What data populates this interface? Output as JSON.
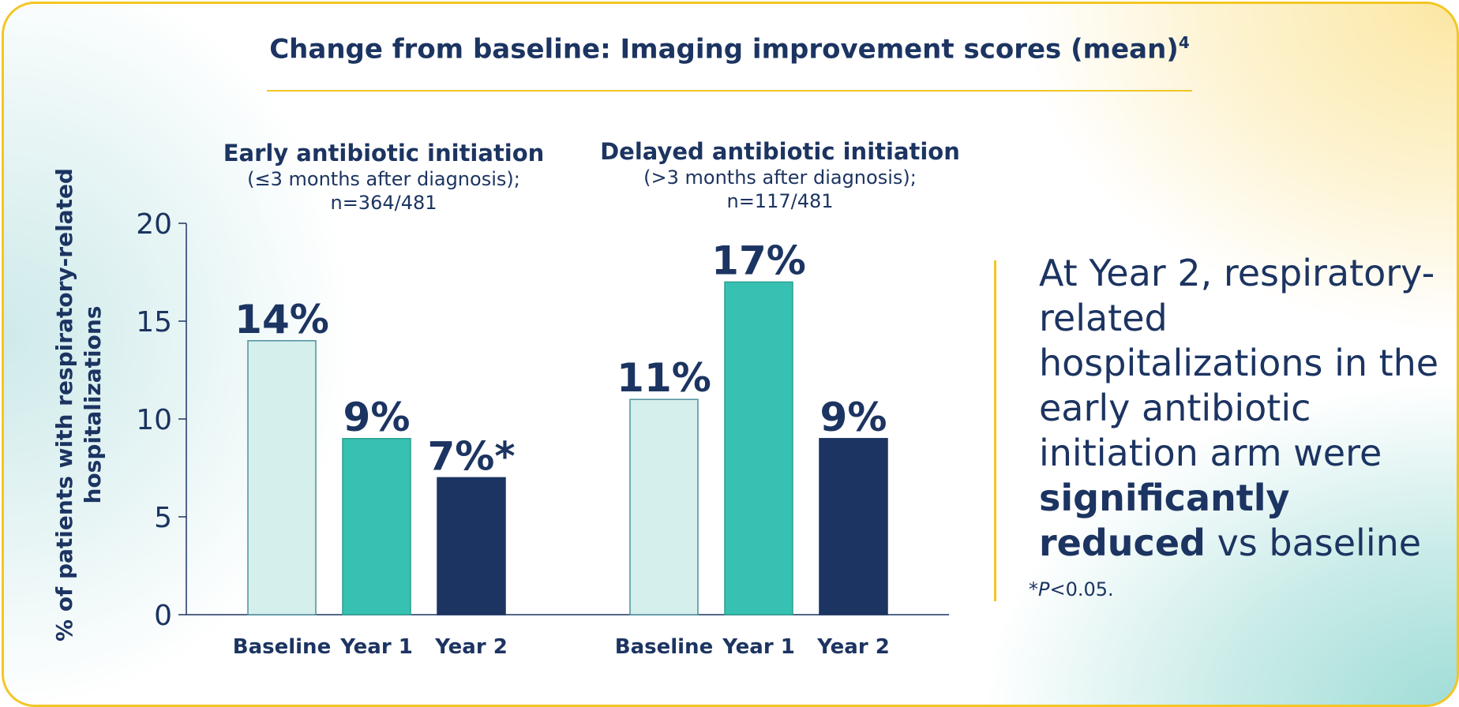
{
  "header": {
    "title": "Change from baseline: Imaging improvement scores (mean)",
    "title_sup": "4"
  },
  "colors": {
    "navy": "#1c3461",
    "teal": "#37c1b3",
    "light_teal": "#d5f0ec",
    "accent_yellow": "#f3c623"
  },
  "chart_data": {
    "type": "bar",
    "ylabel": "% of patients with respiratory-related hospitalizations",
    "ylim": [
      0,
      20
    ],
    "yticks": [
      0,
      5,
      10,
      15,
      20
    ],
    "categories": [
      "Baseline",
      "Year 1",
      "Year 2"
    ],
    "groups": [
      {
        "title": "Early antibiotic initiation",
        "subtitle": "(≤3 months after diagnosis);",
        "n": "n=364/481",
        "values": [
          14,
          9,
          7
        ],
        "labels": [
          "14%",
          "9%",
          "7%*"
        ]
      },
      {
        "title": "Delayed antibiotic initiation",
        "subtitle": "(>3 months after diagnosis);",
        "n": "n=117/481",
        "values": [
          11,
          17,
          9
        ],
        "labels": [
          "11%",
          "17%",
          "9%"
        ]
      }
    ],
    "grid": false,
    "legend": "none"
  },
  "callout": {
    "text_before": "At Year 2, respiratory-related hospitalizations in the early antibiotic initiation arm were ",
    "bold": "significantly reduced",
    "text_after": " vs baseline"
  },
  "footnote": {
    "star": "*",
    "p": "P",
    "text": "<0.05."
  }
}
